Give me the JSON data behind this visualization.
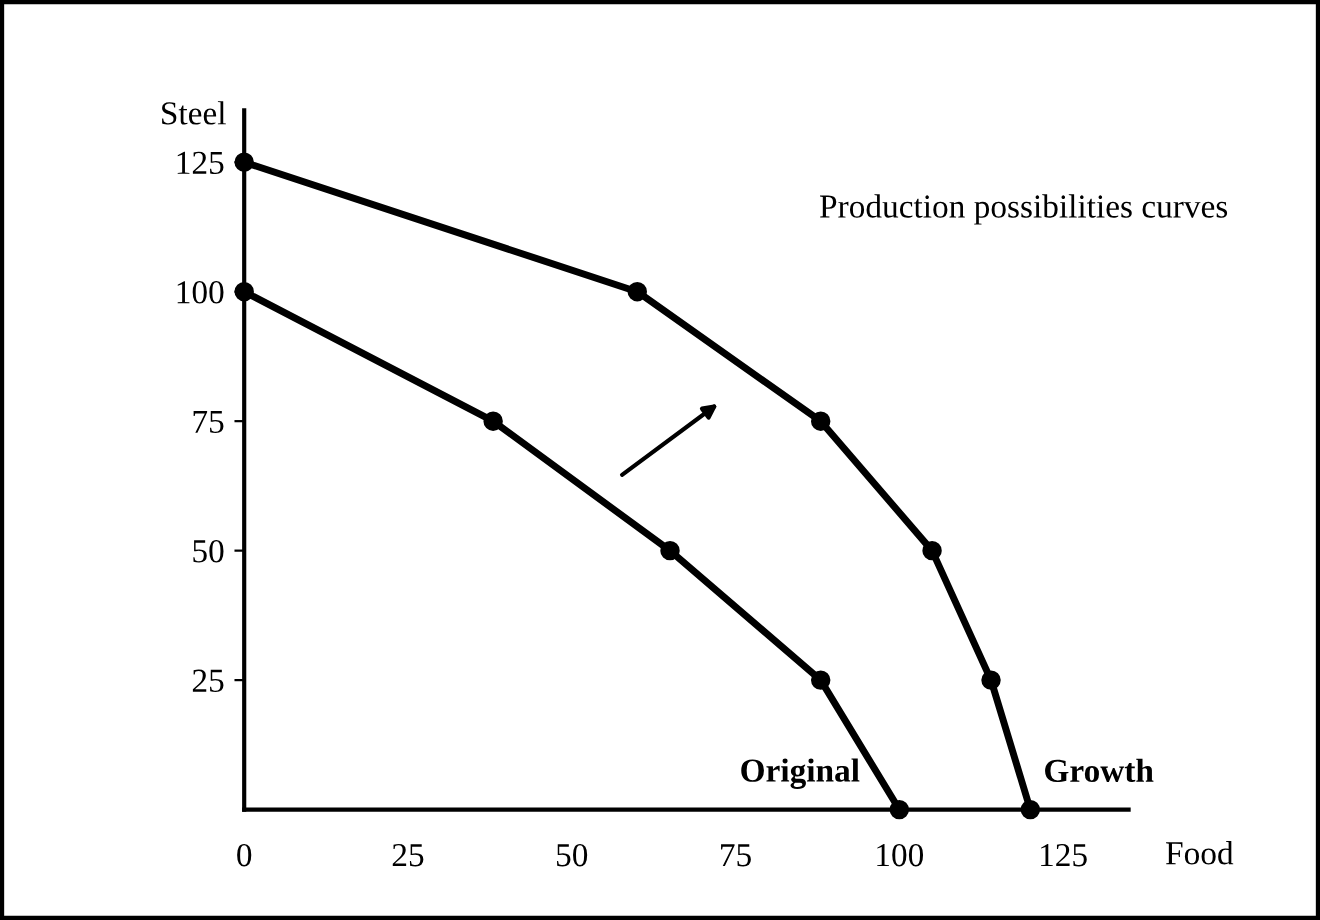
{
  "chart_data": {
    "type": "line",
    "xlabel": "Food",
    "ylabel": "Steel",
    "annotations": [
      "Production possibilities curves"
    ],
    "series": [
      {
        "name": "Original",
        "color": "#000000",
        "x": [
          0,
          38,
          65,
          88,
          100
        ],
        "values": [
          100,
          75,
          50,
          25,
          0
        ]
      },
      {
        "name": "Growth",
        "color": "#000000",
        "x": [
          0,
          60,
          88,
          105,
          114,
          120
        ],
        "values": [
          125,
          100,
          75,
          50,
          25,
          0
        ]
      }
    ],
    "xlim": [
      0,
      135
    ],
    "ylim": [
      0,
      135
    ],
    "xticks": [
      0,
      25,
      50,
      75,
      100,
      125
    ],
    "yticks": [
      25,
      50,
      75,
      100,
      125
    ],
    "marker": "circle",
    "line_style": "solid",
    "grid": false,
    "legend": false
  }
}
